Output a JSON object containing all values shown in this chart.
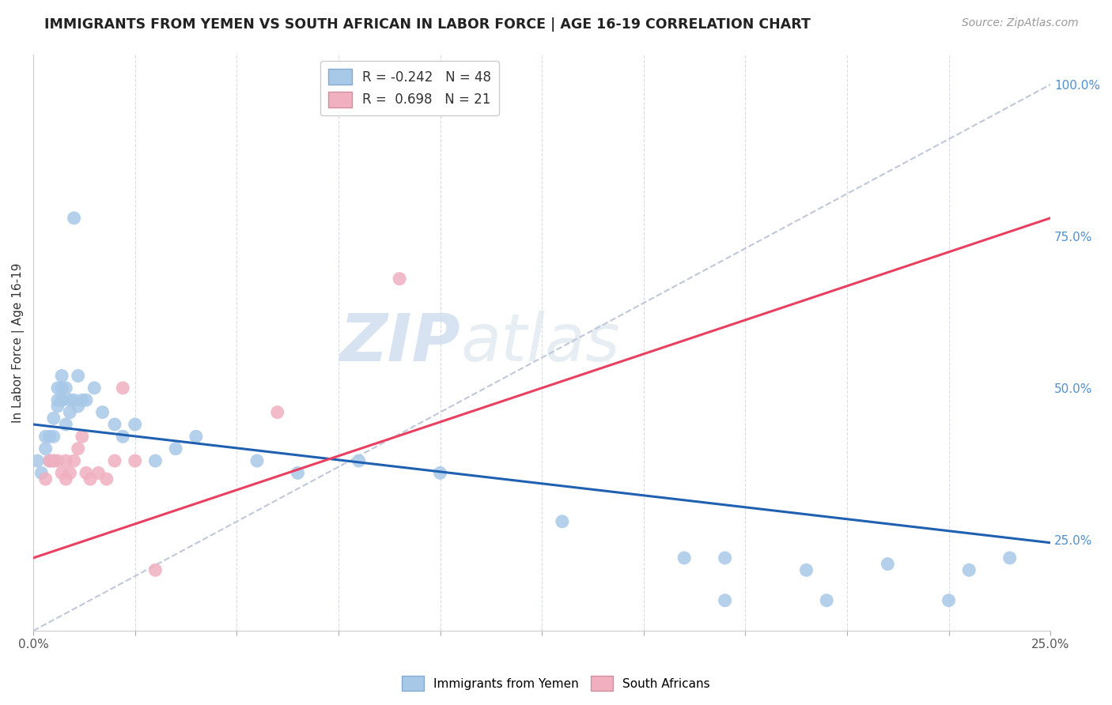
{
  "title": "IMMIGRANTS FROM YEMEN VS SOUTH AFRICAN IN LABOR FORCE | AGE 16-19 CORRELATION CHART",
  "source": "Source: ZipAtlas.com",
  "ylabel": "In Labor Force | Age 16-19",
  "watermark_zip": "ZIP",
  "watermark_atlas": "atlas",
  "blue_color": "#a8c8e8",
  "pink_color": "#f0b0c0",
  "line_blue": "#2060b0",
  "line_pink": "#e84060",
  "line_diag_color": "#c0c8d8",
  "grid_color": "#d8dce8",
  "right_tick_color": "#5090d0",
  "yemen_x": [
    0.001,
    0.002,
    0.003,
    0.003,
    0.004,
    0.004,
    0.005,
    0.005,
    0.005,
    0.006,
    0.006,
    0.006,
    0.007,
    0.007,
    0.007,
    0.007,
    0.008,
    0.008,
    0.009,
    0.009,
    0.01,
    0.01,
    0.011,
    0.011,
    0.012,
    0.013,
    0.015,
    0.017,
    0.02,
    0.022,
    0.025,
    0.03,
    0.035,
    0.04,
    0.055,
    0.065,
    0.08,
    0.1,
    0.13,
    0.16,
    0.17,
    0.19,
    0.21,
    0.23,
    0.17,
    0.195,
    0.225,
    0.24
  ],
  "yemen_y": [
    0.38,
    0.36,
    0.42,
    0.4,
    0.42,
    0.38,
    0.45,
    0.42,
    0.38,
    0.47,
    0.5,
    0.48,
    0.48,
    0.5,
    0.52,
    0.48,
    0.5,
    0.44,
    0.46,
    0.48,
    0.48,
    0.78,
    0.47,
    0.52,
    0.48,
    0.48,
    0.5,
    0.46,
    0.44,
    0.42,
    0.44,
    0.38,
    0.4,
    0.42,
    0.38,
    0.36,
    0.38,
    0.36,
    0.28,
    0.22,
    0.22,
    0.2,
    0.21,
    0.2,
    0.15,
    0.15,
    0.15,
    0.22
  ],
  "sa_x": [
    0.003,
    0.004,
    0.005,
    0.006,
    0.007,
    0.008,
    0.008,
    0.009,
    0.01,
    0.011,
    0.012,
    0.013,
    0.014,
    0.016,
    0.018,
    0.02,
    0.022,
    0.025,
    0.03,
    0.06,
    0.09
  ],
  "sa_y": [
    0.35,
    0.38,
    0.38,
    0.38,
    0.36,
    0.35,
    0.38,
    0.36,
    0.38,
    0.4,
    0.42,
    0.36,
    0.35,
    0.36,
    0.35,
    0.38,
    0.5,
    0.38,
    0.2,
    0.46,
    0.68
  ],
  "blue_line_x": [
    0.0,
    0.25
  ],
  "blue_line_y": [
    0.44,
    0.245
  ],
  "pink_line_x": [
    0.0,
    0.25
  ],
  "pink_line_y": [
    0.22,
    0.78
  ],
  "diag_line_x": [
    0.0,
    0.25
  ],
  "diag_line_y": [
    0.1,
    1.0
  ],
  "xlim": [
    0.0,
    0.25
  ],
  "ylim": [
    0.1,
    1.05
  ],
  "right_yticks": [
    1.0,
    0.75,
    0.5,
    0.25
  ],
  "right_yticklabels": [
    "100.0%",
    "75.0%",
    "50.0%",
    "25.0%"
  ],
  "legend_r1": "R = -0.242",
  "legend_n1": "N = 48",
  "legend_r2": "R =  0.698",
  "legend_n2": "N = 21"
}
